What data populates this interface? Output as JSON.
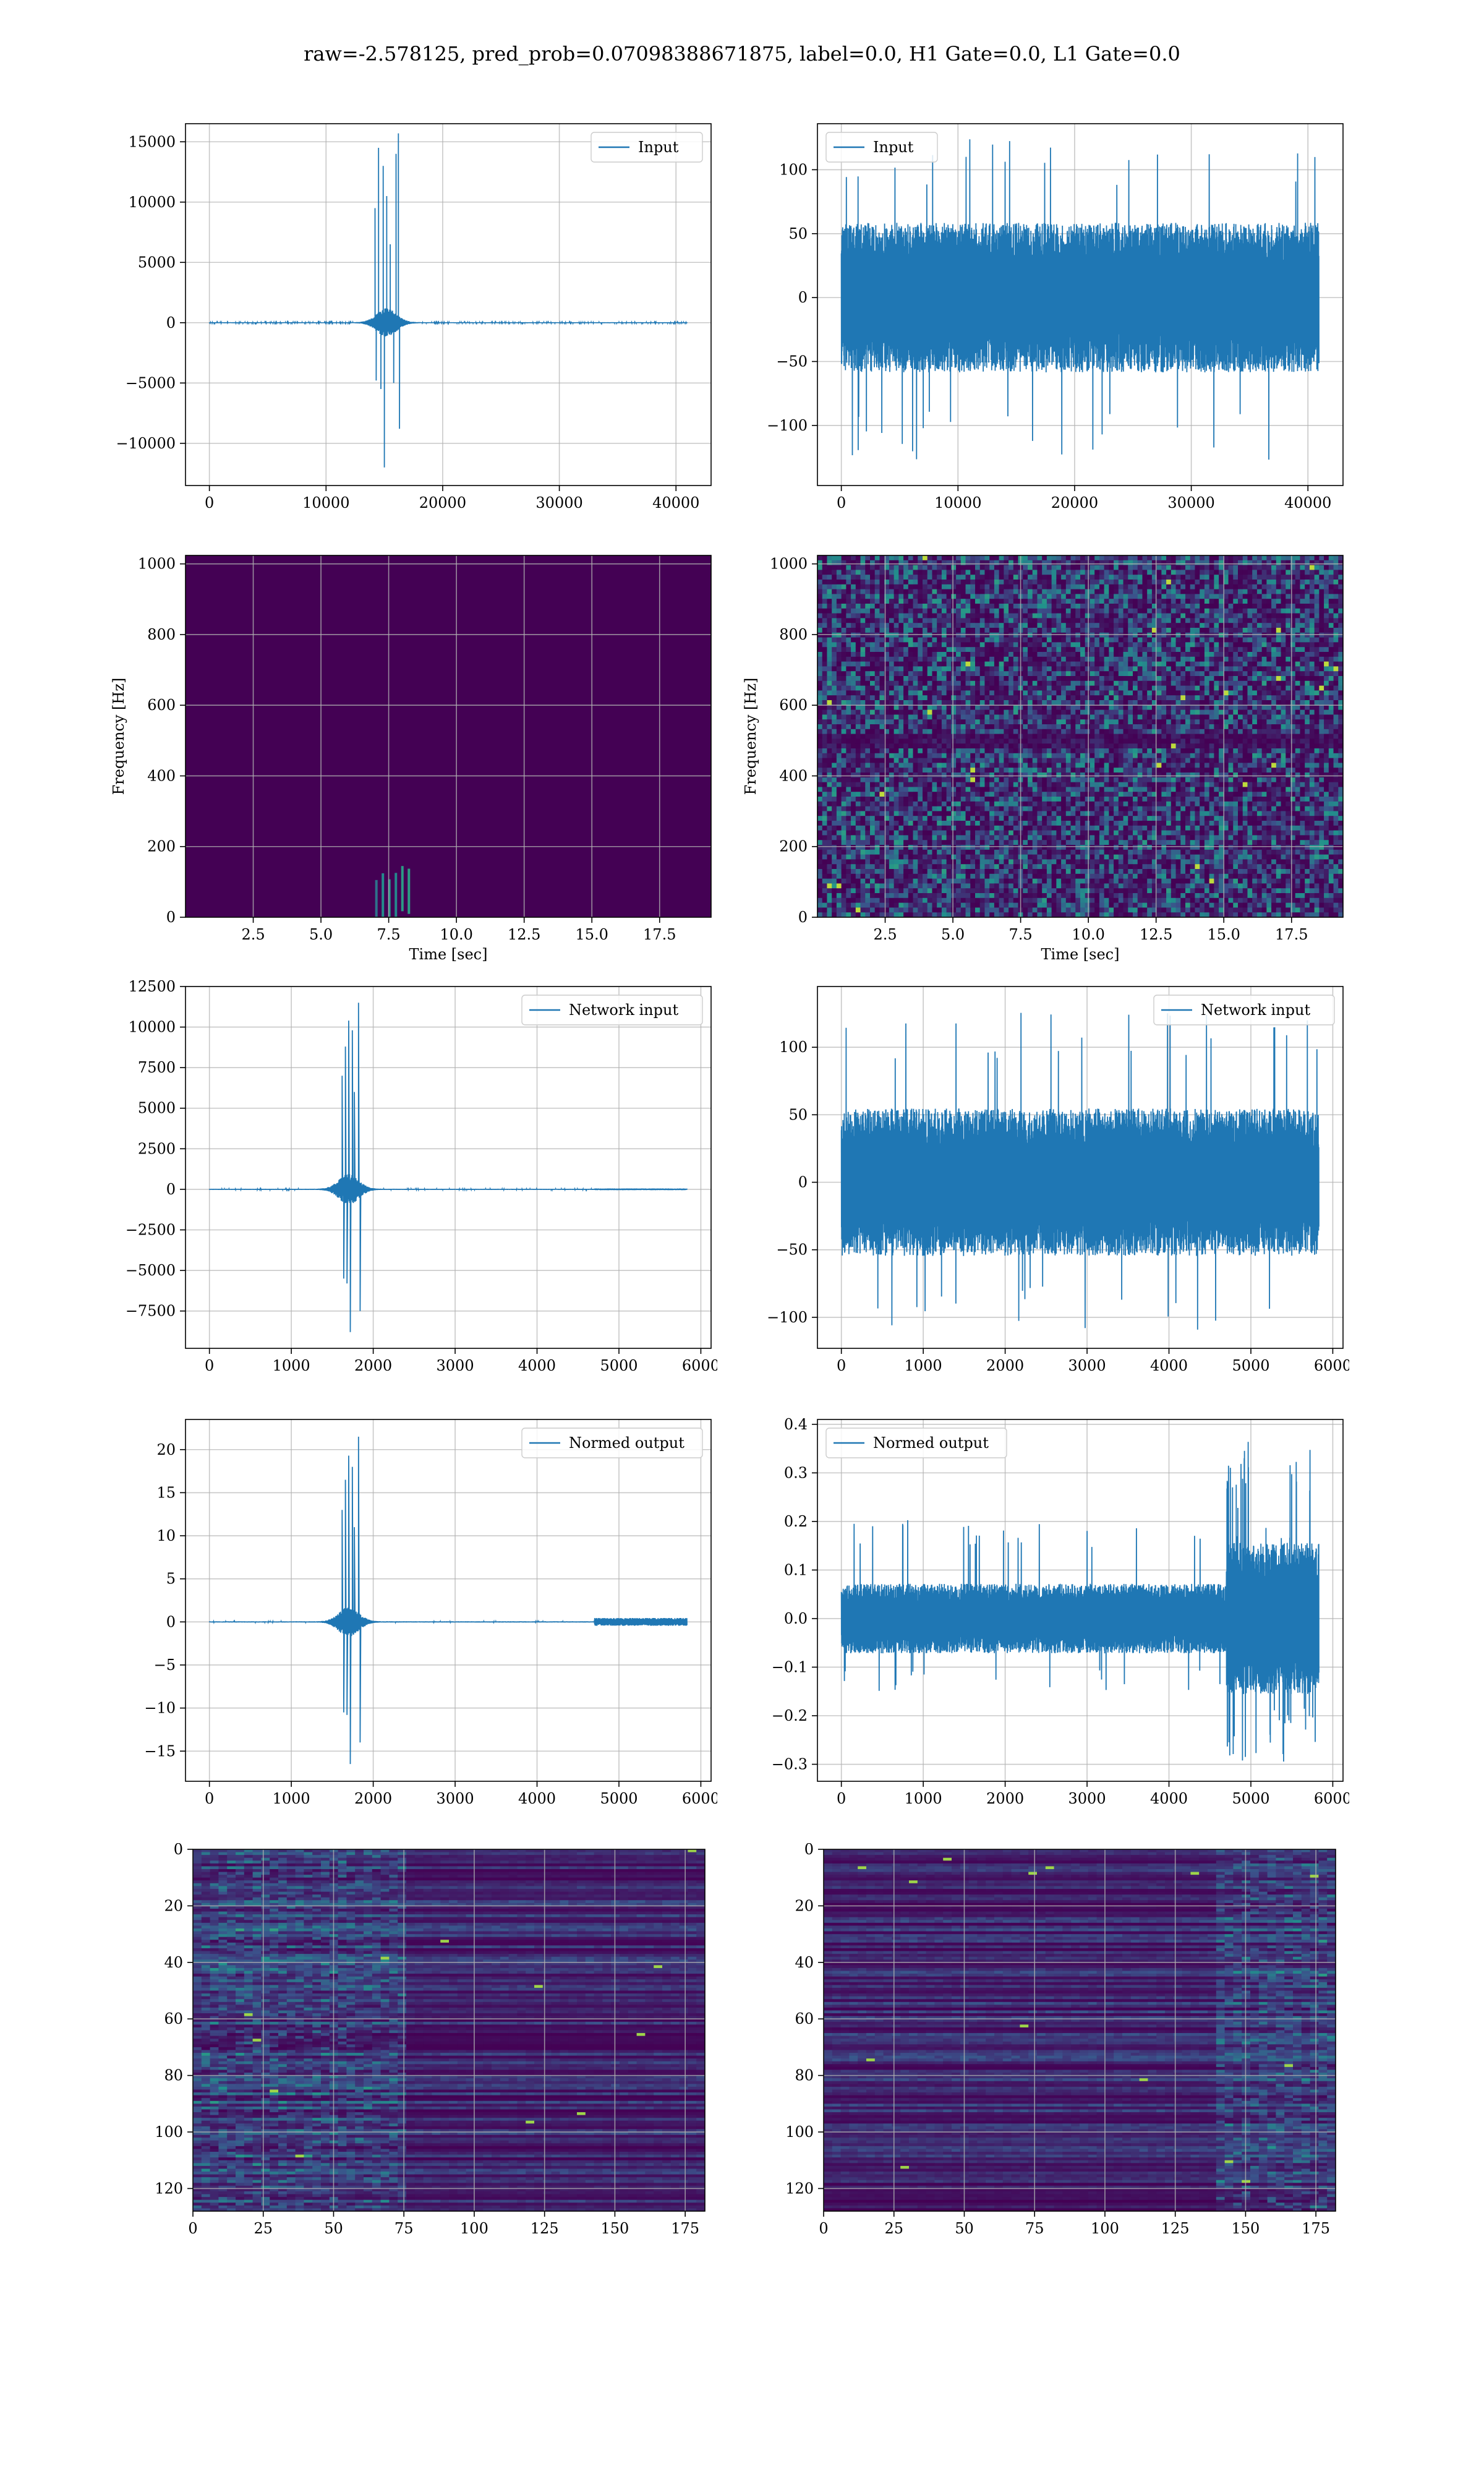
{
  "suptitle": "raw=-2.578125, pred_prob=0.07098388671875, label=0.0, H1 Gate=0.0, L1 Gate=0.0",
  "colors": {
    "line": "#1f77b4",
    "viridis_bg": "#440154",
    "grid": "#b0b0b0"
  },
  "chart_data": [
    {
      "id": "input-h1",
      "type": "line",
      "legend": "Input",
      "xlim": [
        -2048,
        43008
      ],
      "ylim": [
        -13500,
        16500
      ],
      "xticks": [
        0,
        10000,
        20000,
        30000,
        40000
      ],
      "yticks": [
        -10000,
        -5000,
        0,
        5000,
        10000,
        15000
      ],
      "yticklabels": [
        "−10000",
        "−5000",
        "0",
        "5000",
        "10000",
        "15000"
      ],
      "xlabel": "",
      "ylabel": "",
      "grid": true,
      "legend_loc": "upper right",
      "signal": {
        "n": 40960,
        "base_amp": 30,
        "burst_center": 15200,
        "burst_width": 1200,
        "burst_amp": 900,
        "spikes": [
          [
            14200,
            9500
          ],
          [
            14300,
            -4800
          ],
          [
            14500,
            14500
          ],
          [
            14700,
            -5500
          ],
          [
            14900,
            13000
          ],
          [
            15000,
            -12000
          ],
          [
            15200,
            10500
          ],
          [
            15500,
            6500
          ],
          [
            15800,
            -5000
          ],
          [
            16000,
            14000
          ],
          [
            16200,
            15700
          ],
          [
            16300,
            -8800
          ]
        ]
      }
    },
    {
      "id": "input-l1",
      "type": "line",
      "legend": "Input",
      "xlim": [
        -2048,
        43008
      ],
      "ylim": [
        -147,
        136
      ],
      "xticks": [
        0,
        10000,
        20000,
        30000,
        40000
      ],
      "yticks": [
        -100,
        -50,
        0,
        50,
        100
      ],
      "yticklabels": [
        "−100",
        "−50",
        "0",
        "50",
        "100"
      ],
      "xlabel": "",
      "ylabel": "",
      "grid": true,
      "legend_loc": "upper left",
      "signal": {
        "n": 40960,
        "base_amp": 45,
        "noise": true,
        "peak_hi": 125,
        "peak_lo": -127
      }
    },
    {
      "id": "spec-h1",
      "type": "heatmap",
      "ylabel": "Frequency [Hz]",
      "xlabel": "Time [sec]",
      "xlim": [
        0,
        19.4
      ],
      "ylim": [
        0,
        1024
      ],
      "xticks": [
        2.5,
        5.0,
        7.5,
        10.0,
        12.5,
        15.0,
        17.5
      ],
      "xticklabels": [
        "2.5",
        "5.0",
        "7.5",
        "10.0",
        "12.5",
        "15.0",
        "17.5"
      ],
      "yticks": [
        0,
        200,
        400,
        600,
        800,
        1000
      ],
      "yticklabels": [
        "0",
        "200",
        "400",
        "600",
        "800",
        "1000"
      ],
      "grid": true,
      "pattern": "burst",
      "burst_time": [
        7.0,
        8.2
      ],
      "burst_freq": [
        0,
        160
      ]
    },
    {
      "id": "spec-l1",
      "type": "heatmap",
      "ylabel": "Frequency [Hz]",
      "xlabel": "Time [sec]",
      "xlim": [
        0,
        19.4
      ],
      "ylim": [
        0,
        1024
      ],
      "xticks": [
        2.5,
        5.0,
        7.5,
        10.0,
        12.5,
        15.0,
        17.5
      ],
      "xticklabels": [
        "2.5",
        "5.0",
        "7.5",
        "10.0",
        "12.5",
        "15.0",
        "17.5"
      ],
      "yticks": [
        0,
        200,
        400,
        600,
        800,
        1000
      ],
      "yticklabels": [
        "0",
        "200",
        "400",
        "600",
        "800",
        "1000"
      ],
      "grid": true,
      "pattern": "noise",
      "dark_band": [
        480,
        520
      ]
    },
    {
      "id": "netinput-h1",
      "type": "line",
      "legend": "Network input",
      "xlim": [
        -292,
        6125
      ],
      "ylim": [
        -9800,
        12500
      ],
      "xticks": [
        0,
        1000,
        2000,
        3000,
        4000,
        5000,
        6000
      ],
      "yticks": [
        -7500,
        -5000,
        -2500,
        0,
        2500,
        5000,
        7500,
        10000,
        12500
      ],
      "yticklabels": [
        "−7500",
        "−5000",
        "−2500",
        "0",
        "2500",
        "5000",
        "7500",
        "10000",
        "12500"
      ],
      "xlabel": "",
      "ylabel": "",
      "grid": true,
      "legend_loc": "upper right",
      "signal": {
        "n": 5832,
        "base_amp": 25,
        "burst_center": 1700,
        "burst_width": 170,
        "burst_amp": 700,
        "tail": [
          4700,
          5832,
          40
        ],
        "spikes": [
          [
            1620,
            7000
          ],
          [
            1640,
            -5500
          ],
          [
            1660,
            8800
          ],
          [
            1680,
            -5800
          ],
          [
            1700,
            10400
          ],
          [
            1720,
            -8800
          ],
          [
            1745,
            9800
          ],
          [
            1770,
            6000
          ],
          [
            1820,
            11500
          ],
          [
            1840,
            -7500
          ]
        ]
      }
    },
    {
      "id": "netinput-l1",
      "type": "line",
      "legend": "Network input",
      "xlim": [
        -292,
        6125
      ],
      "ylim": [
        -123,
        145
      ],
      "xticks": [
        0,
        1000,
        2000,
        3000,
        4000,
        5000,
        6000
      ],
      "yticks": [
        -100,
        -50,
        0,
        50,
        100
      ],
      "yticklabels": [
        "−100",
        "−50",
        "0",
        "50",
        "100"
      ],
      "xlabel": "",
      "ylabel": "",
      "grid": true,
      "legend_loc": "upper right",
      "signal": {
        "n": 5832,
        "base_amp": 42,
        "noise": true,
        "peak_hi": 127,
        "peak_lo": -110
      }
    },
    {
      "id": "normed-h1",
      "type": "line",
      "legend": "Normed output",
      "xlim": [
        -292,
        6125
      ],
      "ylim": [
        -18.5,
        23.5
      ],
      "xticks": [
        0,
        1000,
        2000,
        3000,
        4000,
        5000,
        6000
      ],
      "yticks": [
        -15,
        -10,
        -5,
        0,
        5,
        10,
        15,
        20
      ],
      "yticklabels": [
        "−15",
        "−10",
        "−5",
        "0",
        "5",
        "10",
        "15",
        "20"
      ],
      "xlabel": "",
      "ylabel": "",
      "grid": true,
      "legend_loc": "upper right",
      "signal": {
        "n": 5832,
        "base_amp": 0.05,
        "burst_center": 1700,
        "burst_width": 170,
        "burst_amp": 1.3,
        "tail": [
          4700,
          5832,
          0.35
        ],
        "spikes": [
          [
            1620,
            13000
          ],
          [
            1640,
            -10500
          ],
          [
            1660,
            16500
          ],
          [
            1680,
            -10800
          ],
          [
            1700,
            19300
          ],
          [
            1720,
            -16500
          ],
          [
            1745,
            18000
          ],
          [
            1770,
            11000
          ],
          [
            1820,
            21500
          ],
          [
            1840,
            -14000
          ]
        ],
        "spike_scale": 0.001
      }
    },
    {
      "id": "normed-l1",
      "type": "line",
      "legend": "Normed output",
      "xlim": [
        -292,
        6125
      ],
      "ylim": [
        -0.335,
        0.41
      ],
      "xticks": [
        0,
        1000,
        2000,
        3000,
        4000,
        5000,
        6000
      ],
      "yticks": [
        -0.3,
        -0.2,
        -0.1,
        0.0,
        0.1,
        0.2,
        0.3,
        0.4
      ],
      "yticklabels": [
        "−0.3",
        "−0.2",
        "−0.1",
        "0.0",
        "0.1",
        "0.2",
        "0.3",
        "0.4"
      ],
      "xlabel": "",
      "ylabel": "",
      "grid": true,
      "legend_loc": "upper left",
      "signal": {
        "n": 5832,
        "base_amp": 0.055,
        "noise": true,
        "peak_hi": 0.21,
        "peak_lo": -0.15,
        "loud_region": [
          4700,
          5832,
          0.12
        ],
        "peak_hi2": 0.37,
        "peak_lo2": -0.3
      }
    },
    {
      "id": "feat-h1",
      "type": "heatmap",
      "xlim": [
        0,
        182
      ],
      "ylim": [
        128,
        0
      ],
      "xticks": [
        0,
        25,
        50,
        75,
        100,
        125,
        150,
        175
      ],
      "xticklabels": [
        "0",
        "25",
        "50",
        "75",
        "100",
        "125",
        "150",
        "175"
      ],
      "yticks": [
        0,
        20,
        40,
        60,
        80,
        100,
        120
      ],
      "yticklabels": [
        "0",
        "20",
        "40",
        "60",
        "80",
        "100",
        "120"
      ],
      "xlabel": "",
      "ylabel": "",
      "grid": true,
      "pattern": "rows",
      "hot_cols": [
        0,
        75
      ]
    },
    {
      "id": "feat-l1",
      "type": "heatmap",
      "xlim": [
        0,
        182
      ],
      "ylim": [
        128,
        0
      ],
      "xticks": [
        0,
        25,
        50,
        75,
        100,
        125,
        150,
        175
      ],
      "xticklabels": [
        "0",
        "25",
        "50",
        "75",
        "100",
        "125",
        "150",
        "175"
      ],
      "yticks": [
        0,
        20,
        40,
        60,
        80,
        100,
        120
      ],
      "yticklabels": [
        "0",
        "20",
        "40",
        "60",
        "80",
        "100",
        "120"
      ],
      "xlabel": "",
      "ylabel": "",
      "grid": true,
      "pattern": "rows",
      "hot_cols": [
        140,
        182
      ]
    }
  ]
}
